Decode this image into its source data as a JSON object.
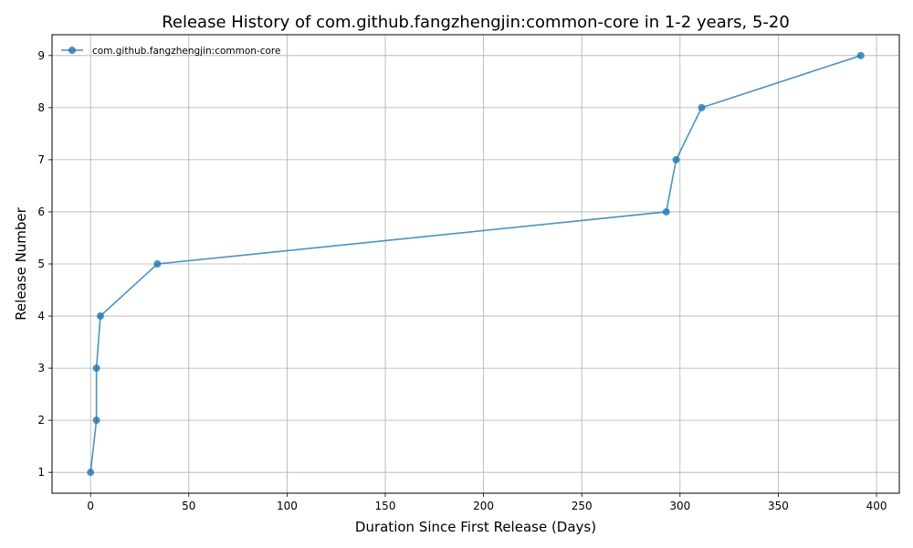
{
  "chart_data": {
    "type": "line",
    "title": "Release History of com.github.fangzhengjin:common-core in 1-2 years, 5-20",
    "xlabel": "Duration Since First Release (Days)",
    "ylabel": "Release Number",
    "xlim": [
      -19.6,
      411.6
    ],
    "ylim": [
      0.6,
      9.4
    ],
    "xticks": [
      0,
      50,
      100,
      150,
      200,
      250,
      300,
      350,
      400
    ],
    "yticks": [
      1,
      2,
      3,
      4,
      5,
      6,
      7,
      8,
      9
    ],
    "grid": true,
    "legend_position": "top-left",
    "series": [
      {
        "name": "com.github.fangzhengjin:common-core",
        "color": "#1f77b4",
        "marker": "circle",
        "x": [
          0,
          3,
          3,
          5,
          34,
          293,
          298,
          311,
          392
        ],
        "y": [
          1,
          2,
          3,
          4,
          5,
          6,
          7,
          8,
          9
        ]
      }
    ]
  }
}
